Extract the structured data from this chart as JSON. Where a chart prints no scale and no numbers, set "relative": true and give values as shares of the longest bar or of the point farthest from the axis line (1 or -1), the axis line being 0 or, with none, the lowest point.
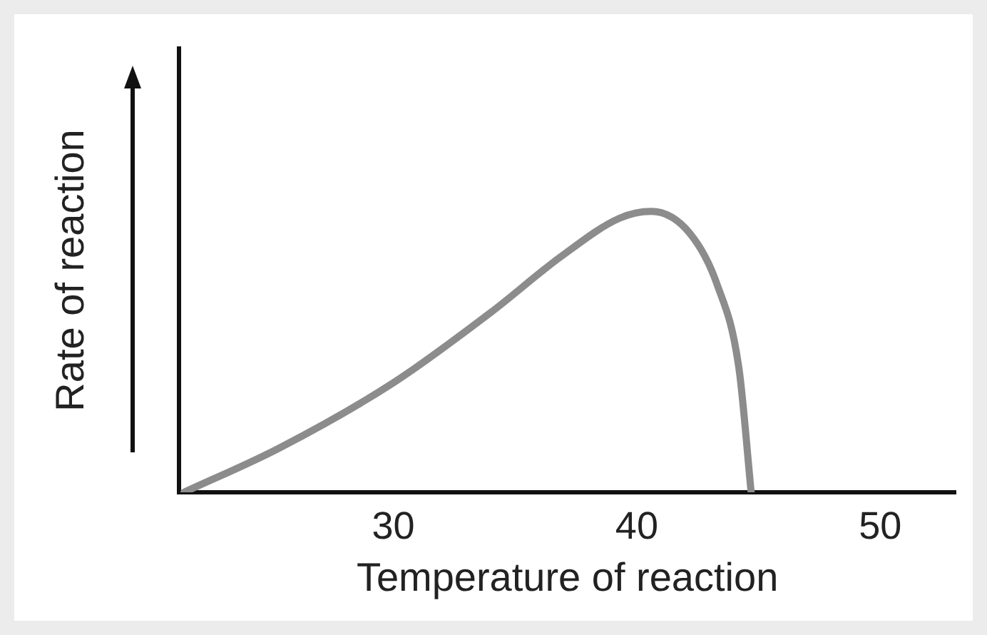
{
  "chart_data": {
    "type": "line",
    "xlabel": "Temperature of reaction",
    "ylabel": "Rate of reaction",
    "relative": true,
    "xlim": [
      21.2,
      53.1
    ],
    "xticks": [
      30,
      40,
      50
    ],
    "grid": false,
    "legend": false,
    "marker": "none",
    "line_style": "solid",
    "x": [
      21.4,
      25.3,
      30,
      34.0,
      36.9,
      39.3,
      40.6,
      42.2,
      43.3,
      44.2,
      44.7
    ],
    "series": [
      {
        "color": "#8c8c8c",
        "values": [
          0,
          0.157,
          0.39,
          0.64,
          0.84,
          0.976,
          1,
          0.92,
          0.74,
          0.44,
          0
        ]
      }
    ]
  }
}
